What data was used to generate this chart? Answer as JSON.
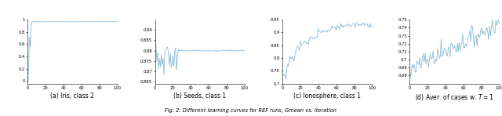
{
  "fig_width": 6.4,
  "fig_height": 1.48,
  "dpi": 100,
  "line_color": "#8BBBD9",
  "line_width": 0.6,
  "subplot_titles": [
    "(a) Iris, class 2",
    "(b) Seeds, class 1",
    "(c) Ionosphere, class 1",
    "(d) Aver. of cases w. $T=1$"
  ],
  "caption": "Fig. 2: Different learning curves for REF runs, Gmean vs. iteration",
  "plots": [
    {
      "ylim": [
        -0.04,
        1.0
      ],
      "yticks": [
        0.0,
        0.2,
        0.4,
        0.6,
        0.8,
        1.0
      ],
      "ytick_labels": [
        "0",
        "0.2",
        "0.4",
        "0.6",
        "0.8",
        "1"
      ],
      "xlim": [
        0,
        100
      ],
      "xticks": [
        0,
        10,
        20,
        30,
        40,
        50,
        60,
        70,
        80,
        90,
        100
      ]
    },
    {
      "ylim": [
        0.864,
        0.895
      ],
      "yticks": [
        0.865,
        0.87,
        0.875,
        0.88,
        0.885,
        0.89
      ],
      "ytick_labels": [
        "0.865",
        "0.87",
        "0.875",
        "0.88",
        "0.885",
        "0.89"
      ],
      "xlim": [
        0,
        100
      ],
      "xticks": [
        0,
        10,
        20,
        30,
        40,
        50,
        60,
        70,
        80,
        90,
        100
      ]
    },
    {
      "ylim": [
        0.7,
        0.95
      ],
      "yticks": [
        0.7,
        0.75,
        0.8,
        0.85,
        0.9,
        0.95
      ],
      "ytick_labels": [
        "0.7",
        "0.75",
        "0.8",
        "0.85",
        "0.9",
        "0.95"
      ],
      "xlim": [
        0,
        100
      ],
      "xticks": [
        0,
        10,
        20,
        30,
        40,
        50,
        60,
        70,
        80,
        90,
        100
      ]
    },
    {
      "ylim": [
        0.67,
        0.75
      ],
      "yticks": [
        0.68,
        0.69,
        0.7,
        0.71,
        0.72,
        0.73,
        0.74,
        0.75
      ],
      "ytick_labels": [
        "0.68",
        "0.69",
        "0.7",
        "0.71",
        "0.72",
        "0.73",
        "0.74",
        "0.75"
      ],
      "xlim": [
        0,
        100
      ],
      "xticks": [
        0,
        10,
        20,
        30,
        40,
        50,
        60,
        70,
        80,
        90,
        100
      ]
    }
  ]
}
